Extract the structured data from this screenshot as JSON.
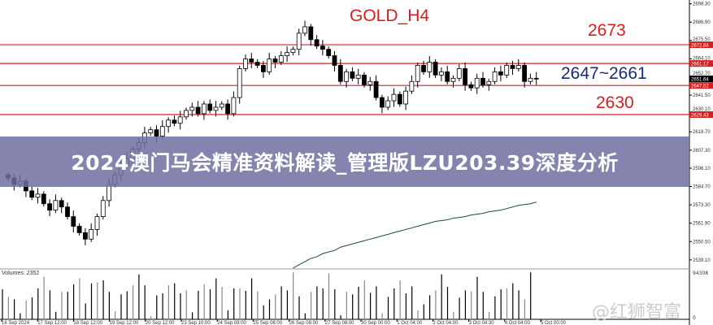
{
  "chart_data": {
    "type": "candlestick",
    "title": "GOLD_H4",
    "ylim": [
      2530,
      2702
    ],
    "y_ticks": [
      "2698.30",
      "2686.90",
      "2675.50",
      "2664.10",
      "2652.70",
      "2641.50",
      "2630.10",
      "2618.70",
      "2607.30",
      "2596.10",
      "2584.70",
      "2573.30",
      "2561.90",
      "2550.50",
      "2539.10"
    ],
    "x_ticks": [
      "16 Sep 2024",
      "17 Sep 12:00",
      "18 Sep 12:00",
      "19 Sep 12:00",
      "20 Sep 12:00",
      "23 Sep 10:00",
      "24 Sep 08:00",
      "25 Sep 08:00",
      "26 Sep 08:00",
      "27 Sep 08:00",
      "30 Sep 00:00",
      "1 Oct 04:00",
      "2 Oct 04:00",
      "3 Oct 04:30",
      "4 Oct 04:00",
      "5 Oct 00:00"
    ],
    "closes": [
      2590,
      2586,
      2588,
      2582,
      2578,
      2580,
      2574,
      2570,
      2576,
      2572,
      2566,
      2560,
      2556,
      2552,
      2558,
      2566,
      2576,
      2586,
      2592,
      2598,
      2602,
      2608,
      2612,
      2618,
      2620,
      2616,
      2622,
      2626,
      2624,
      2628,
      2632,
      2634,
      2630,
      2636,
      2632,
      2634,
      2636,
      2630,
      2640,
      2658,
      2664,
      2662,
      2660,
      2656,
      2664,
      2662,
      2666,
      2668,
      2670,
      2680,
      2684,
      2676,
      2672,
      2670,
      2666,
      2660,
      2650,
      2656,
      2652,
      2654,
      2648,
      2650,
      2640,
      2634,
      2638,
      2642,
      2636,
      2644,
      2650,
      2660,
      2656,
      2662,
      2654,
      2656,
      2650,
      2652,
      2658,
      2648,
      2646,
      2652,
      2648,
      2650,
      2656,
      2654,
      2660,
      2658,
      2660,
      2650,
      2652,
      2651.64
    ],
    "moving_average": {
      "start_index": 48,
      "values": [
        2534,
        2536,
        2538,
        2540,
        2541,
        2543,
        2544,
        2545,
        2547,
        2548,
        2549,
        2550,
        2551,
        2552,
        2553,
        2554,
        2555,
        2556,
        2557,
        2558,
        2559,
        2560,
        2561,
        2562,
        2563,
        2563.5,
        2564,
        2565,
        2565.5,
        2566,
        2567,
        2567.5,
        2568,
        2569,
        2569.5,
        2570,
        2571,
        2572,
        2573,
        2573.5,
        2574,
        2575
      ]
    },
    "levels": [
      {
        "price": 2672.84,
        "tag": "2672.84",
        "label": "2673"
      },
      {
        "price": 2661.17,
        "tag": "2661.17",
        "label": "2647~2661"
      },
      {
        "price": 2647.52,
        "tag": "2647.52",
        "label": ""
      },
      {
        "price": 2629.43,
        "tag": "2629.43",
        "label": "2630"
      }
    ],
    "current_price": "2651.64",
    "volume_label": "Volumes: 2352",
    "volume_max_label": "94308",
    "volume_zero_label": "0",
    "volume_max": 94308,
    "volumes": [
      60000,
      45000,
      40000,
      12000,
      38000,
      44000,
      62000,
      85000,
      58000,
      15000,
      55000,
      55000,
      70000,
      82000,
      32000,
      72000,
      74000,
      78000,
      55000,
      16000,
      50000,
      56000,
      68000,
      90000,
      68000,
      6000,
      48000,
      52000,
      68000,
      72000,
      52000,
      58000,
      14000,
      57000,
      70000,
      60000,
      82000,
      65000,
      18000,
      62000,
      62000,
      57000,
      82000,
      56000,
      28000,
      40000,
      50000,
      66000,
      58000,
      94000,
      46000,
      12000,
      55000,
      66000,
      62000,
      92000,
      60000,
      8000,
      55000,
      50000,
      65000,
      78000,
      53000,
      66000,
      12000,
      45000,
      62000,
      78000,
      52000,
      66000,
      18000,
      30000,
      48000,
      58000,
      90000,
      65000,
      15000,
      43000,
      58000,
      56000,
      85000,
      55000,
      15000,
      46000,
      60000,
      62000,
      72000,
      58000,
      40000,
      94000
    ],
    "volume_extra": [
      60000,
      4000
    ]
  },
  "banner": "2024澳门马会精准资料解读_管理版LZU203.39深度分析",
  "watermark": "@红狮智富",
  "colors": {
    "level": "#d42020",
    "label_blue": "#1a2a7a",
    "ma": "#1d4d2e",
    "candle": "#000000"
  }
}
